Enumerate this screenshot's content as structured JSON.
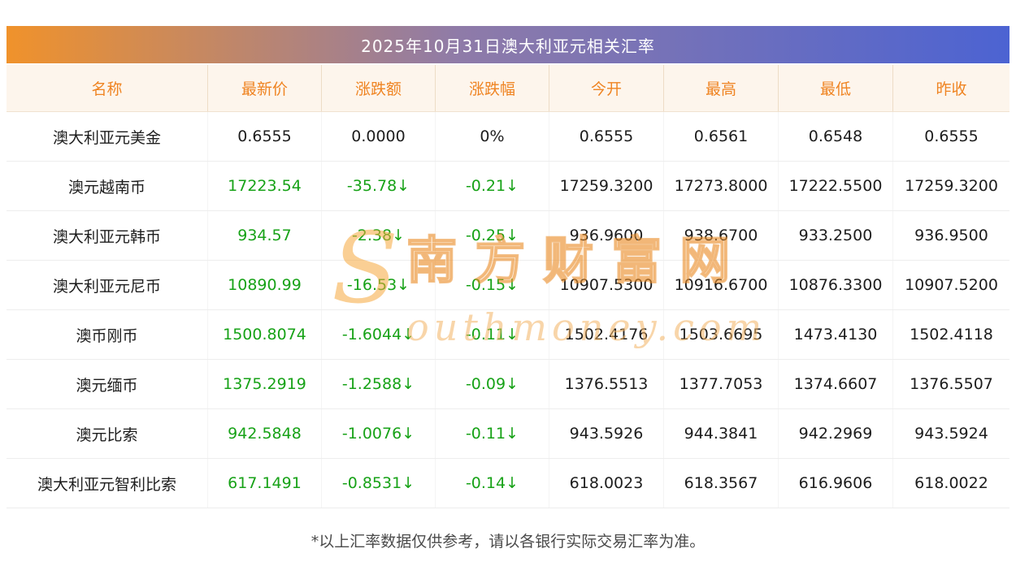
{
  "title": "2025年10月31日澳大利亚元相关汇率",
  "watermark": {
    "logo": "S",
    "brand": "南方财富网",
    "domain": "outhmoney.com"
  },
  "footer": "*以上汇率数据仅供参考，请以各银行实际交易汇率为准。",
  "colors": {
    "title_gradient_left": "#f0922b",
    "title_gradient_right": "#4c63d2",
    "header_bg": "#fdf5ec",
    "header_text": "#ef8422",
    "down_green": "#17a217",
    "body_text": "#1d1d1d"
  },
  "chart_data": {
    "type": "table",
    "title": "2025年10月31日澳大利亚元相关汇率",
    "columns": [
      "名称",
      "最新价",
      "涨跌额",
      "涨跌幅",
      "今开",
      "最高",
      "最低",
      "昨收"
    ],
    "rows": [
      {
        "name": "澳大利亚元美金",
        "latest": "0.6555",
        "change": "0.0000",
        "pct": "0%",
        "open": "0.6555",
        "high": "0.6561",
        "low": "0.6548",
        "prev": "0.6555",
        "trend": "flat"
      },
      {
        "name": "澳元越南币",
        "latest": "17223.54",
        "change": "-35.78↓",
        "pct": "-0.21↓",
        "open": "17259.3200",
        "high": "17273.8000",
        "low": "17222.5500",
        "prev": "17259.3200",
        "trend": "down"
      },
      {
        "name": "澳大利亚元韩币",
        "latest": "934.57",
        "change": "-2.38↓",
        "pct": "-0.25↓",
        "open": "936.9600",
        "high": "938.6700",
        "low": "933.2500",
        "prev": "936.9500",
        "trend": "down"
      },
      {
        "name": "澳大利亚元尼币",
        "latest": "10890.99",
        "change": "-16.53↓",
        "pct": "-0.15↓",
        "open": "10907.5300",
        "high": "10916.6700",
        "low": "10876.3300",
        "prev": "10907.5200",
        "trend": "down"
      },
      {
        "name": "澳币刚币",
        "latest": "1500.8074",
        "change": "-1.6044↓",
        "pct": "-0.11↓",
        "open": "1502.4176",
        "high": "1503.6695",
        "low": "1473.4130",
        "prev": "1502.4118",
        "trend": "down"
      },
      {
        "name": "澳元缅币",
        "latest": "1375.2919",
        "change": "-1.2588↓",
        "pct": "-0.09↓",
        "open": "1376.5513",
        "high": "1377.7053",
        "low": "1374.6607",
        "prev": "1376.5507",
        "trend": "down"
      },
      {
        "name": "澳元比索",
        "latest": "942.5848",
        "change": "-1.0076↓",
        "pct": "-0.11↓",
        "open": "943.5926",
        "high": "944.3841",
        "low": "942.2969",
        "prev": "943.5924",
        "trend": "down"
      },
      {
        "name": "澳大利亚元智利比索",
        "latest": "617.1491",
        "change": "-0.8531↓",
        "pct": "-0.14↓",
        "open": "618.0023",
        "high": "618.3567",
        "low": "616.9606",
        "prev": "618.0022",
        "trend": "down"
      }
    ]
  }
}
